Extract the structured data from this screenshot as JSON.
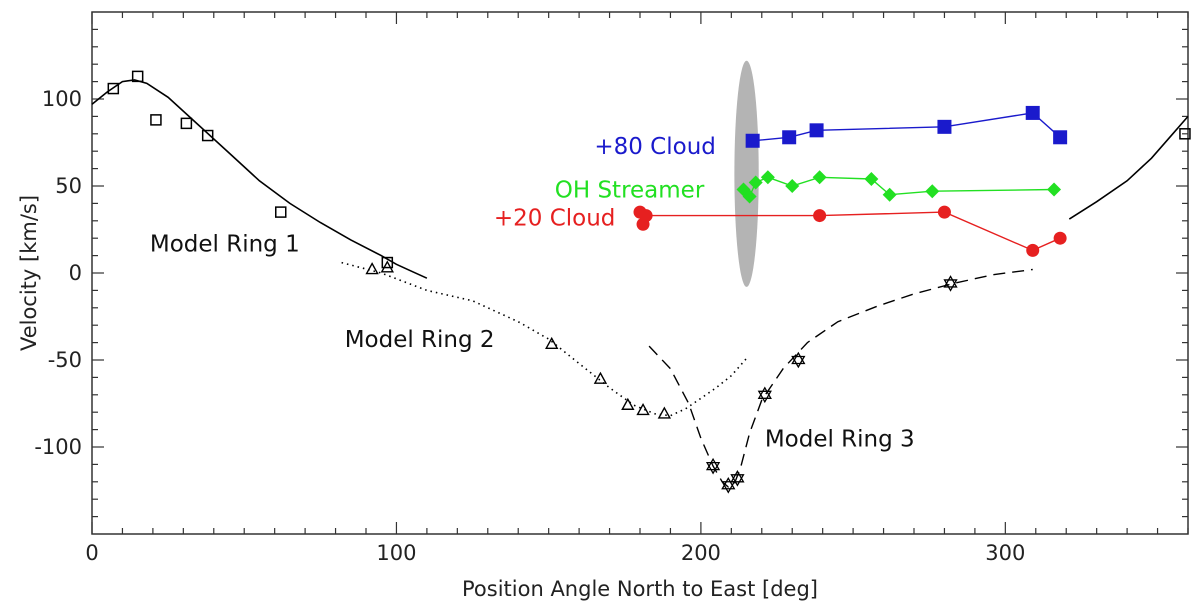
{
  "chart_data": {
    "type": "scatter",
    "title": "",
    "xlabel": "Position Angle North to East [deg]",
    "ylabel": "Velocity [km/s]",
    "xlim": [
      0,
      360
    ],
    "ylim": [
      -150,
      150
    ],
    "xticks": [
      0,
      100,
      200,
      300
    ],
    "yticks": [
      100,
      50,
      0,
      -50,
      -100
    ],
    "xtick_labels": [
      "0",
      "100",
      "200",
      "300"
    ],
    "ytick_labels": [
      "100",
      "50",
      "0",
      "-50",
      "-100"
    ],
    "grid": false,
    "legend": "none",
    "colors": {
      "cloud80": "#1a1acc",
      "oh": "#22e022",
      "cloud20": "#e62020",
      "model": "#000000",
      "ellipse": "#b4b4b4"
    },
    "ellipse": {
      "center": [
        215,
        57
      ],
      "half_width": 4,
      "half_height": 65
    },
    "annotations": [
      {
        "id": "ring1",
        "text": "Model Ring 1",
        "x": 19,
        "y": 17
      },
      {
        "id": "ring2",
        "text": "Model Ring 2",
        "x": 83,
        "y": -38
      },
      {
        "id": "ring3",
        "text": "Model Ring 3",
        "x": 221,
        "y": -95
      },
      {
        "id": "cloud80",
        "text": "+80 Cloud",
        "x": 165,
        "y": 73
      },
      {
        "id": "oh",
        "text": "OH Streamer",
        "x": 152,
        "y": 48
      },
      {
        "id": "cloud20",
        "text": "+20 Cloud",
        "x": 132,
        "y": 32
      }
    ],
    "series": [
      {
        "name": "+80 Cloud",
        "marker": "filled-square",
        "color": "#1a1acc",
        "connect": true,
        "x": [
          217,
          229,
          238,
          280,
          309,
          318
        ],
        "y": [
          76,
          78,
          82,
          84,
          92,
          78
        ]
      },
      {
        "name": "OH Streamer",
        "marker": "filled-diamond",
        "color": "#22e022",
        "connect": true,
        "x": [
          214,
          216,
          218,
          222,
          230,
          239,
          256,
          262,
          276,
          316
        ],
        "y": [
          48,
          44,
          52,
          55,
          50,
          55,
          54,
          45,
          47,
          48
        ]
      },
      {
        "name": "+20 Cloud",
        "marker": "filled-circle",
        "color": "#e62020",
        "connect": true,
        "x": [
          180,
          181,
          182,
          239,
          280,
          309,
          318
        ],
        "y": [
          35,
          28,
          33,
          33,
          35,
          13,
          20
        ]
      },
      {
        "name": "",
        "marker": "open-square",
        "color": "#000000",
        "connect": false,
        "x": [
          7,
          15,
          21,
          31,
          38,
          62,
          97,
          359
        ],
        "y": [
          106,
          113,
          88,
          86,
          79,
          35,
          6,
          80
        ]
      },
      {
        "name": "",
        "marker": "open-triangle",
        "color": "#000000",
        "connect": false,
        "x": [
          92,
          97,
          151,
          167,
          176,
          181,
          188
        ],
        "y": [
          2,
          3,
          -41,
          -61,
          -76,
          -79,
          -81
        ]
      },
      {
        "name": "",
        "marker": "open-star",
        "color": "#000000",
        "connect": false,
        "x": [
          204,
          209,
          212,
          221,
          232,
          282
        ],
        "y": [
          -111,
          -122,
          -118,
          -70,
          -50,
          -6
        ]
      },
      {
        "name": "",
        "line": "solid",
        "color": "#000000",
        "x": [
          0,
          5,
          10,
          14,
          18,
          25,
          35,
          45,
          55,
          65,
          75,
          85,
          95,
          100,
          105,
          110
        ],
        "y": [
          97,
          104,
          110,
          111,
          109,
          101,
          85,
          69,
          53,
          40,
          29,
          19,
          10,
          5,
          1,
          -3
        ]
      },
      {
        "name": "",
        "line": "solid",
        "color": "#000000",
        "x": [
          321,
          330,
          340,
          348,
          355,
          360
        ],
        "y": [
          31,
          41,
          53,
          66,
          80,
          90
        ]
      },
      {
        "name": "",
        "line": "dotted",
        "color": "#000000",
        "x": [
          82,
          95,
          110,
          125,
          140,
          150,
          160,
          170,
          178,
          185,
          190,
          195,
          200,
          205,
          210,
          215
        ],
        "y": [
          6,
          0,
          -10,
          -16,
          -28,
          -38,
          -52,
          -66,
          -76,
          -81,
          -82,
          -78,
          -72,
          -66,
          -59,
          -49
        ]
      },
      {
        "name": "",
        "line": "dashed",
        "color": "#000000",
        "x": [
          183,
          190,
          196,
          200,
          204,
          207,
          209,
          211,
          213,
          216,
          220,
          227,
          235,
          245,
          258,
          270,
          283,
          296,
          309
        ],
        "y": [
          -42,
          -55,
          -75,
          -95,
          -111,
          -120,
          -123,
          -121,
          -112,
          -92,
          -73,
          -55,
          -40,
          -28,
          -19,
          -12,
          -6,
          -1,
          2
        ]
      }
    ]
  }
}
